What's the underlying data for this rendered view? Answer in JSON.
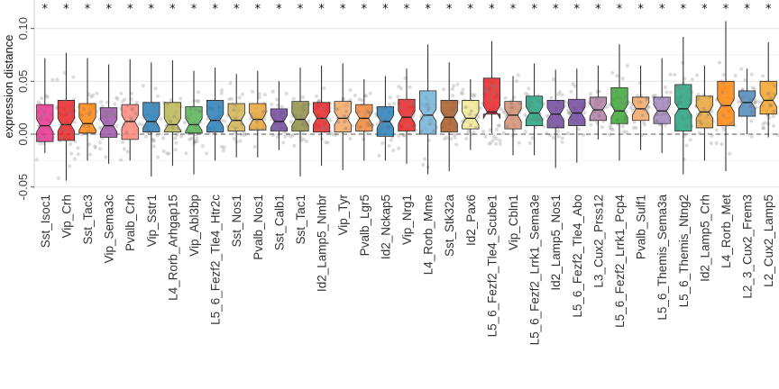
{
  "chart_data": {
    "type": "boxplot",
    "title": "",
    "xlabel": "",
    "ylabel": "expression distance",
    "ylim": [
      -0.052,
      0.127
    ],
    "yticks": [
      -0.05,
      0.0,
      0.05,
      0.1
    ],
    "ytick_labels": [
      "-0.05",
      "0.00",
      "0.05",
      "0.10"
    ],
    "reference_line": 0,
    "significance_marker": "*",
    "grid": true,
    "series": [
      {
        "name": "Sst_Isoc1",
        "color": "#e7298a",
        "q1": -0.007,
        "median": 0.008,
        "q3": 0.028,
        "whisker_low": -0.018,
        "whisker_high": 0.072
      },
      {
        "name": "Vip_Crh",
        "color": "#e41a1c",
        "q1": -0.006,
        "median": 0.009,
        "q3": 0.032,
        "whisker_low": -0.044,
        "whisker_high": 0.077
      },
      {
        "name": "Sst_Tac3",
        "color": "#ff7f00",
        "q1": 0.001,
        "median": 0.01,
        "q3": 0.029,
        "whisker_low": -0.025,
        "whisker_high": 0.072
      },
      {
        "name": "Vip_Sema3c",
        "color": "#984ea3",
        "q1": -0.003,
        "median": 0.008,
        "q3": 0.025,
        "whisker_low": -0.028,
        "whisker_high": 0.066
      },
      {
        "name": "Pvalb_Crh",
        "color": "#fb8072",
        "q1": -0.005,
        "median": 0.012,
        "q3": 0.028,
        "whisker_low": -0.025,
        "whisker_high": 0.071
      },
      {
        "name": "Vip_Sstr1",
        "color": "#1f78b4",
        "q1": 0.002,
        "median": 0.012,
        "q3": 0.03,
        "whisker_low": -0.04,
        "whisker_high": 0.068
      },
      {
        "name": "L4_Rorb_Arhgap15",
        "color": "#b8b24a",
        "q1": 0.002,
        "median": 0.009,
        "q3": 0.03,
        "whisker_low": -0.03,
        "whisker_high": 0.07
      },
      {
        "name": "Vip_Abl3bp",
        "color": "#4daf4a",
        "q1": 0.001,
        "median": 0.009,
        "q3": 0.026,
        "whisker_low": -0.038,
        "whisker_high": 0.06
      },
      {
        "name": "L5_6_Fezf2_Tle4_Htr2c",
        "color": "#1f78b4",
        "q1": 0.002,
        "median": 0.013,
        "q3": 0.032,
        "whisker_low": -0.025,
        "whisker_high": 0.063
      },
      {
        "name": "Sst_Nos1",
        "color": "#cfb04a",
        "q1": 0.003,
        "median": 0.013,
        "q3": 0.029,
        "whisker_low": -0.022,
        "whisker_high": 0.057
      },
      {
        "name": "Pvalb_Nos1",
        "color": "#e6a030",
        "q1": 0.004,
        "median": 0.014,
        "q3": 0.029,
        "whisker_low": -0.022,
        "whisker_high": 0.06
      },
      {
        "name": "Sst_Calb1",
        "color": "#6a3d9a",
        "q1": 0.003,
        "median": 0.012,
        "q3": 0.024,
        "whisker_low": -0.015,
        "whisker_high": 0.05
      },
      {
        "name": "Sst_Tac1",
        "color": "#8c8a3c",
        "q1": 0.003,
        "median": 0.014,
        "q3": 0.031,
        "whisker_low": -0.04,
        "whisker_high": 0.063
      },
      {
        "name": "Id2_Lamp5_Nmbr",
        "color": "#e41a1c",
        "q1": 0.002,
        "median": 0.015,
        "q3": 0.03,
        "whisker_low": -0.03,
        "whisker_high": 0.065
      },
      {
        "name": "Vip_Tyr",
        "color": "#f4a460",
        "q1": 0.002,
        "median": 0.015,
        "q3": 0.031,
        "whisker_low": -0.034,
        "whisker_high": 0.067
      },
      {
        "name": "Pvalb_Lgr5",
        "color": "#f08030",
        "q1": 0.003,
        "median": 0.015,
        "q3": 0.028,
        "whisker_low": -0.025,
        "whisker_high": 0.052
      },
      {
        "name": "Id2_Nckap5",
        "color": "#1f78b4",
        "q1": -0.002,
        "median": 0.012,
        "q3": 0.026,
        "whisker_low": -0.025,
        "whisker_high": 0.055
      },
      {
        "name": "Vip_Nrg1",
        "color": "#e41a1c",
        "q1": 0.003,
        "median": 0.016,
        "q3": 0.033,
        "whisker_low": -0.028,
        "whisker_high": 0.062
      },
      {
        "name": "L4_Rorb_Mme",
        "color": "#6baed6",
        "q1": 0.0,
        "median": 0.018,
        "q3": 0.041,
        "whisker_low": -0.038,
        "whisker_high": 0.085
      },
      {
        "name": "Sst_Stk32a",
        "color": "#a6531b",
        "q1": 0.002,
        "median": 0.016,
        "q3": 0.032,
        "whisker_low": -0.035,
        "whisker_high": 0.068
      },
      {
        "name": "Id2_Pax6",
        "color": "#f0e68c",
        "q1": 0.005,
        "median": 0.015,
        "q3": 0.032,
        "whisker_low": -0.015,
        "whisker_high": 0.052
      },
      {
        "name": "L5_6_Fezf2_Tle4_Scube1",
        "color": "#e41a1c",
        "q1": 0.019,
        "median": 0.021,
        "q3": 0.053,
        "whisker_low": 0.001,
        "whisker_high": 0.088
      },
      {
        "name": "Vip_Cbln1",
        "color": "#d08a6a",
        "q1": 0.005,
        "median": 0.018,
        "q3": 0.031,
        "whisker_low": -0.02,
        "whisker_high": 0.055
      },
      {
        "name": "L5_6_Fezf2_Lrrk1_Sema3e",
        "color": "#1b9e77",
        "q1": 0.008,
        "median": 0.02,
        "q3": 0.036,
        "whisker_low": -0.02,
        "whisker_high": 0.067
      },
      {
        "name": "Id2_Lamp5_Nos1",
        "color": "#6a3d9a",
        "q1": 0.006,
        "median": 0.019,
        "q3": 0.032,
        "whisker_low": -0.032,
        "whisker_high": 0.061
      },
      {
        "name": "L5_6_Fezf2_Tle4_Abo",
        "color": "#6a3d9a",
        "q1": 0.008,
        "median": 0.02,
        "q3": 0.033,
        "whisker_low": -0.027,
        "whisker_high": 0.062
      },
      {
        "name": "L3_Cux2_Prss12",
        "color": "#b07aa1",
        "q1": 0.013,
        "median": 0.023,
        "q3": 0.035,
        "whisker_low": -0.005,
        "whisker_high": 0.065
      },
      {
        "name": "L5_6_Fezf2_Lrrk1_Pcp4",
        "color": "#33a02c",
        "q1": 0.01,
        "median": 0.022,
        "q3": 0.044,
        "whisker_low": -0.025,
        "whisker_high": 0.085
      },
      {
        "name": "Pvalb_Sulf1",
        "color": "#f4a460",
        "q1": 0.013,
        "median": 0.024,
        "q3": 0.035,
        "whisker_low": -0.015,
        "whisker_high": 0.065
      },
      {
        "name": "L5_6_Themis_Sema3a",
        "color": "#9e7fb8",
        "q1": 0.01,
        "median": 0.022,
        "q3": 0.035,
        "whisker_low": -0.018,
        "whisker_high": 0.072
      },
      {
        "name": "L5_6_Themis_Ntng2",
        "color": "#1b9e77",
        "q1": 0.003,
        "median": 0.024,
        "q3": 0.047,
        "whisker_low": -0.038,
        "whisker_high": 0.092
      },
      {
        "name": "Id2_Lamp5_Crh",
        "color": "#e6a030",
        "q1": 0.006,
        "median": 0.021,
        "q3": 0.036,
        "whisker_low": -0.025,
        "whisker_high": 0.065
      },
      {
        "name": "L4_Rorb_Met",
        "color": "#ff7f00",
        "q1": 0.008,
        "median": 0.027,
        "q3": 0.05,
        "whisker_low": -0.035,
        "whisker_high": 0.107
      },
      {
        "name": "L2_3_Cux2_Frem3",
        "color": "#4682b4",
        "q1": 0.017,
        "median": 0.03,
        "q3": 0.041,
        "whisker_low": 0.0,
        "whisker_high": 0.062
      },
      {
        "name": "L2_Cux2_Lamp5",
        "color": "#f4a020",
        "q1": 0.019,
        "median": 0.032,
        "q3": 0.05,
        "whisker_low": -0.003,
        "whisker_high": 0.087
      }
    ]
  }
}
